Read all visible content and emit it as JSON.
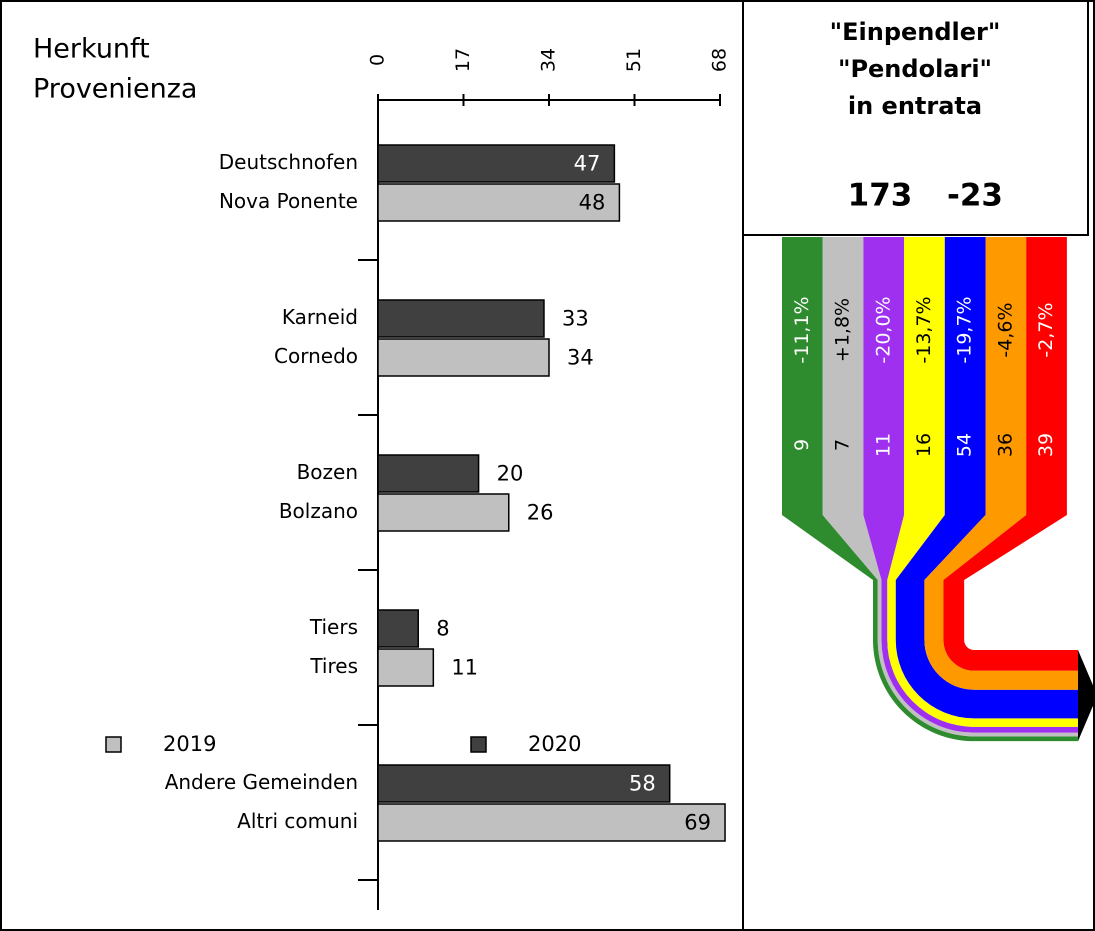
{
  "chart_data": {
    "type": "bar",
    "orientation": "horizontal",
    "title": [
      "Herkunft",
      "Provenienza"
    ],
    "categories": [
      [
        "Deutschnofen",
        "Nova Ponente"
      ],
      [
        "Karneid",
        "Cornedo"
      ],
      [
        "Bozen",
        "Bolzano"
      ],
      [
        "Tiers",
        "Tires"
      ],
      [
        "Andere Gemeinden",
        "Altri comuni"
      ]
    ],
    "series": [
      {
        "name": "2020",
        "color": "#404040",
        "values": [
          47,
          33,
          20,
          8,
          58
        ]
      },
      {
        "name": "2019",
        "color": "#c0c0c0",
        "values": [
          48,
          34,
          26,
          11,
          69
        ]
      }
    ],
    "xlim": [
      0,
      68
    ],
    "xticks": [
      0,
      17,
      34,
      51,
      68
    ],
    "flow": {
      "type": "sankey",
      "title": [
        "\"Einpendler\"",
        "\"Pendolari\"",
        "in entrata"
      ],
      "total": 173,
      "change": -23,
      "colors": [
        "#2e8b2e",
        "#c0c0c0",
        "#a030f0",
        "#ffff00",
        "#0000ff",
        "#ff9900",
        "#ff0000"
      ],
      "label_colors": [
        "#ffffff",
        "#000000",
        "#ffffff",
        "#000000",
        "#ffffff",
        "#000000",
        "#ffffff"
      ],
      "values": [
        9,
        7,
        11,
        16,
        54,
        36,
        39
      ],
      "changes": [
        -11.1,
        1.8,
        -20.0,
        -13.7,
        -19.7,
        -4.6,
        -2.7
      ],
      "change_labels": [
        "-11,1%",
        "+1,8%",
        "-20,0%",
        "-13,7%",
        "-19,7%",
        "-4,6%",
        "-2,7%"
      ]
    }
  }
}
